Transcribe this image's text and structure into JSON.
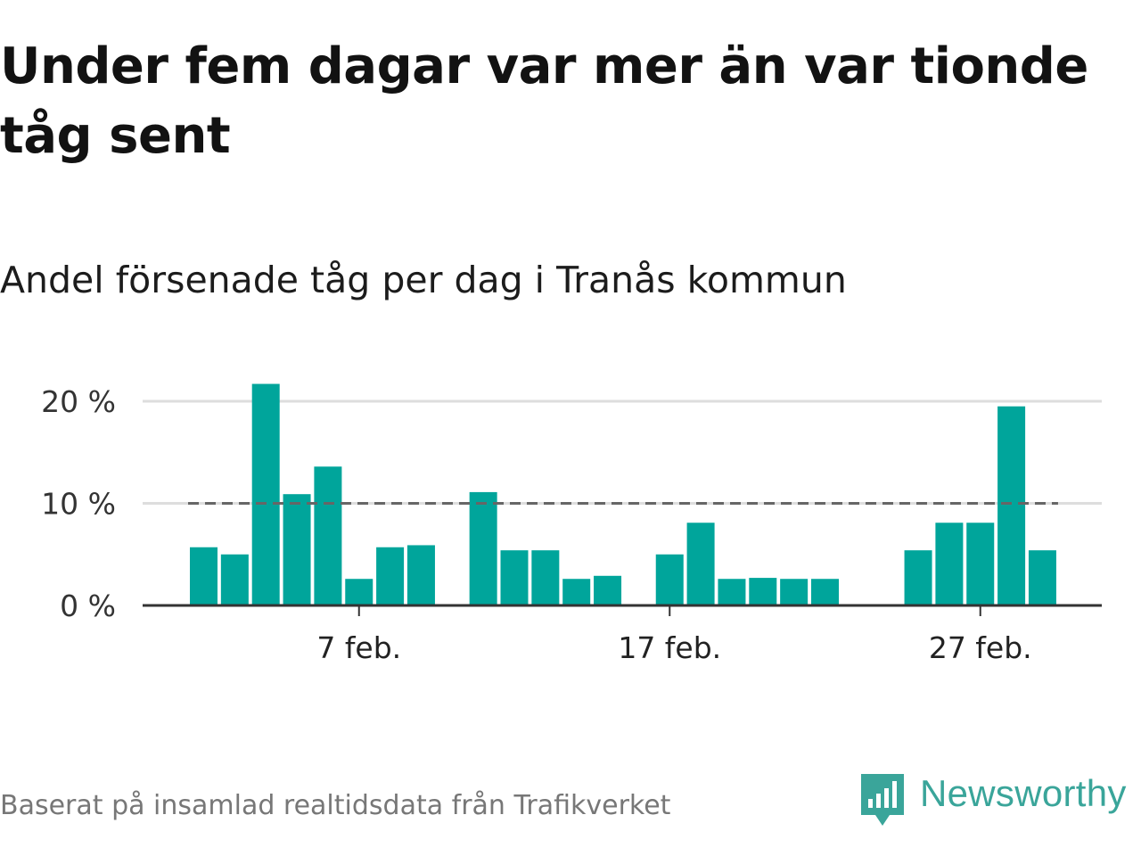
{
  "title": "Under fem dagar var mer än var tionde tåg sent",
  "subtitle": "Andel försenade tåg per dag i Tranås kommun",
  "footer": "Baserat på insamlad realtidsdata från Trafikverket",
  "logo": {
    "text": "Newsworthy",
    "icon": "newsworthy-chart-icon",
    "color": "#3aa59a"
  },
  "colors": {
    "bar": "#00a59b",
    "reference_line": "#666666",
    "grid": "#dddddd",
    "axis": "#333333"
  },
  "chart_data": {
    "type": "bar",
    "title": "Under fem dagar var mer än var tionde tåg sent",
    "subtitle": "Andel försenade tåg per dag i Tranås kommun",
    "x_axis": {
      "type": "date",
      "range": [
        "2019-02-01",
        "2019-03-01"
      ]
    },
    "y_axis": {
      "range": [
        0,
        22
      ],
      "ticks": [
        0,
        10,
        20
      ],
      "tick_labels": [
        "0 %",
        "10 %",
        "20 %"
      ],
      "grid": true
    },
    "x_ticks": [
      {
        "date": "2019-02-07",
        "label": "7 feb."
      },
      {
        "date": "2019-02-17",
        "label": "17 feb."
      },
      {
        "date": "2019-02-27",
        "label": "27 feb."
      }
    ],
    "reference_line": {
      "value": 10,
      "style": "dashed"
    },
    "data": [
      {
        "date": "2019-02-02",
        "value": 5.7
      },
      {
        "date": "2019-02-03",
        "value": 5.0
      },
      {
        "date": "2019-02-04",
        "value": 21.7
      },
      {
        "date": "2019-02-05",
        "value": 10.9
      },
      {
        "date": "2019-02-06",
        "value": 13.6
      },
      {
        "date": "2019-02-07",
        "value": 2.6
      },
      {
        "date": "2019-02-08",
        "value": 5.7
      },
      {
        "date": "2019-02-09",
        "value": 5.9
      },
      {
        "date": "2019-02-11",
        "value": 11.1
      },
      {
        "date": "2019-02-12",
        "value": 5.4
      },
      {
        "date": "2019-02-13",
        "value": 5.4
      },
      {
        "date": "2019-02-14",
        "value": 2.6
      },
      {
        "date": "2019-02-15",
        "value": 2.9
      },
      {
        "date": "2019-02-17",
        "value": 5.0
      },
      {
        "date": "2019-02-18",
        "value": 8.1
      },
      {
        "date": "2019-02-19",
        "value": 2.6
      },
      {
        "date": "2019-02-20",
        "value": 2.7
      },
      {
        "date": "2019-02-21",
        "value": 2.6
      },
      {
        "date": "2019-02-22",
        "value": 2.6
      },
      {
        "date": "2019-02-25",
        "value": 5.4
      },
      {
        "date": "2019-02-26",
        "value": 8.1
      },
      {
        "date": "2019-02-27",
        "value": 8.1
      },
      {
        "date": "2019-02-28",
        "value": 19.5
      },
      {
        "date": "2019-03-01",
        "value": 5.4
      }
    ]
  }
}
